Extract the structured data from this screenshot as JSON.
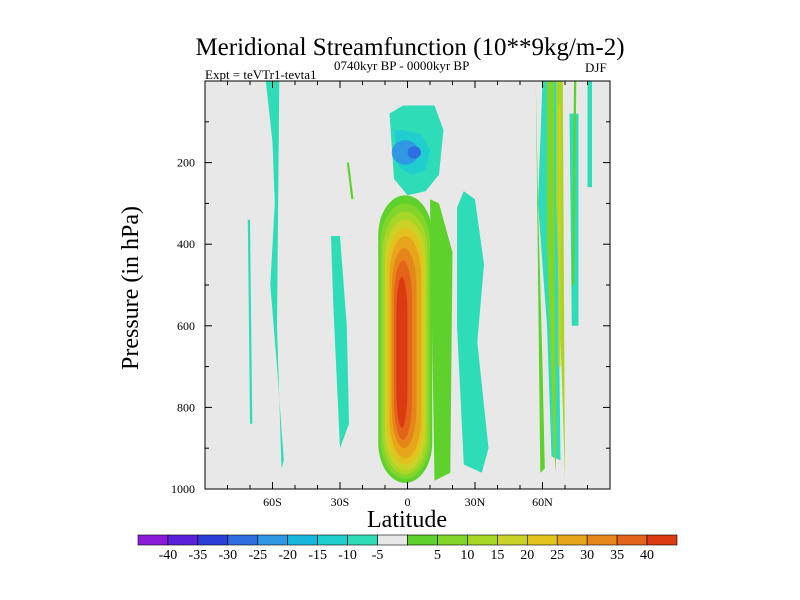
{
  "chart_data": {
    "type": "contour",
    "title": "Meridional Streamfunction (10**9kg/m-2)",
    "experiment": "Expt = teVTr1-tevta1",
    "period": "0740kyr BP - 0000kyr BP",
    "season": "DJF",
    "xlabel": "Latitude",
    "ylabel": "Pressure (in hPa)",
    "xlim": [
      -90,
      90
    ],
    "ylim": [
      1000,
      0
    ],
    "xticks": [
      {
        "value": -60,
        "label": "60S"
      },
      {
        "value": -30,
        "label": "30S"
      },
      {
        "value": 0,
        "label": "0"
      },
      {
        "value": 30,
        "label": "30N"
      },
      {
        "value": 60,
        "label": "60N"
      }
    ],
    "yticks": [
      {
        "value": 200,
        "label": "200"
      },
      {
        "value": 400,
        "label": "400"
      },
      {
        "value": 600,
        "label": "600"
      },
      {
        "value": 800,
        "label": "800"
      },
      {
        "value": 1000,
        "label": "1000"
      }
    ],
    "background_color": "#e8e8e8",
    "colorbar": {
      "colors": [
        "#8a1cd8",
        "#5a22d8",
        "#2c3ed8",
        "#2f6ee0",
        "#2f98e2",
        "#19b6dc",
        "#1fcfd0",
        "#2edcb7",
        "#e8e8e8",
        "#5ed12d",
        "#82d52b",
        "#a8d627",
        "#cbd227",
        "#e4c21d",
        "#e6a51b",
        "#e6861a",
        "#e4631a",
        "#dc3a10"
      ],
      "labels": [
        "-40",
        "-35",
        "-30",
        "-25",
        "-20",
        "-15",
        "-10",
        "-5",
        "5",
        "10",
        "15",
        "20",
        "25",
        "30",
        "35",
        "40"
      ]
    },
    "regions": [
      {
        "name": "sh-strip-west",
        "level": -5,
        "lon": [
          -58,
          -63,
          -58,
          -62,
          -60,
          -60,
          -56,
          -57,
          -57
        ],
        "lat": [
          -62,
          -61,
          -59,
          -60,
          -58,
          -55,
          -56,
          -58,
          -60
        ],
        "p": [
          20,
          300,
          500,
          700,
          930,
          950,
          900,
          600,
          100
        ]
      },
      {
        "name": "sh-thin-line",
        "level": -5,
        "lon": [
          -70,
          -69,
          -69,
          -70
        ],
        "lat": [
          -71,
          -70,
          -70,
          -71
        ],
        "p": [
          340,
          340,
          840,
          840
        ]
      },
      {
        "name": "sh-mid-strip",
        "level": -5,
        "lon": [
          -30,
          -32,
          -31,
          -26,
          -26,
          -28
        ],
        "lat": [
          -34,
          -33,
          -30,
          -26,
          -30,
          -31
        ],
        "p": [
          380,
          500,
          900,
          940,
          600,
          380
        ]
      },
      {
        "name": "sh-patch-green",
        "level": 5,
        "lon": [
          -27,
          -27,
          -26,
          -26
        ],
        "lat": [
          -26,
          -25,
          -25,
          -26
        ],
        "p": [
          200,
          200,
          340,
          340
        ]
      },
      {
        "name": "nh-strip-main",
        "level": -5,
        "lon": [
          10,
          8,
          20,
          35,
          28,
          34,
          30,
          15
        ],
        "lat": [
          22,
          24,
          26,
          30,
          33,
          36,
          34,
          20
        ],
        "p": [
          440,
          280,
          300,
          450,
          600,
          900,
          960,
          900
        ]
      },
      {
        "name": "nh-strip-east",
        "level": -5,
        "lon": [
          52,
          48,
          56,
          58,
          62,
          60
        ],
        "lat": [
          58,
          56,
          60,
          62,
          66,
          64
        ],
        "p": [
          20,
          300,
          600,
          900,
          960,
          300
        ]
      }
    ],
    "cells": [
      {
        "name": "equatorial-positive-cell",
        "lat_range": [
          -12,
          10
        ],
        "p_range": [
          280,
          985
        ],
        "peak": 40,
        "peak_lat": -3,
        "peak_p": 650
      },
      {
        "name": "upper-negative-cell",
        "lat_range": [
          -8,
          14
        ],
        "p_range": [
          60,
          280
        ],
        "peak": -25,
        "peak_lat": 0,
        "peak_p": 175
      },
      {
        "name": "nh-positive-strips",
        "lat_range": [
          55,
          76
        ],
        "p_range": [
          0,
          980
        ],
        "peak": 15,
        "peak_lat": 68,
        "peak_p": 500
      }
    ]
  }
}
